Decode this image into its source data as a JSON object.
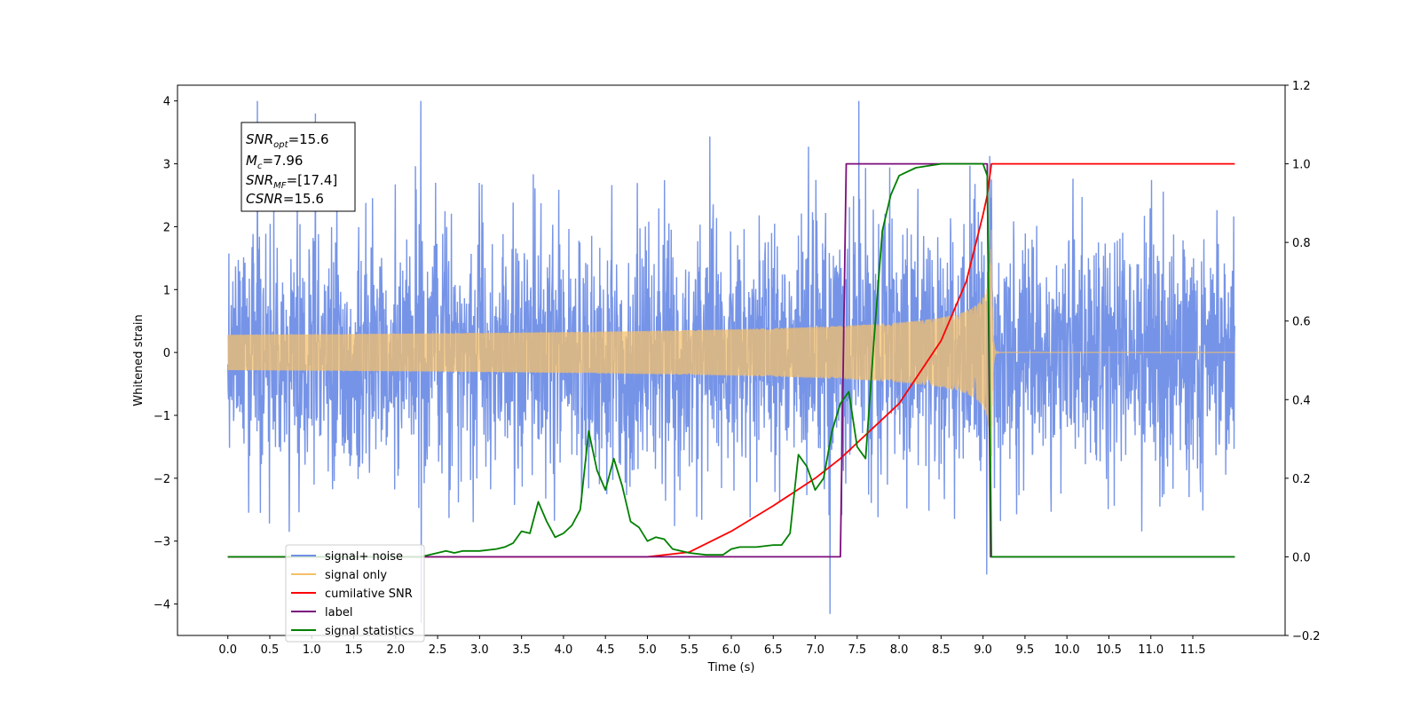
{
  "chart_data": {
    "type": "line",
    "xlabel": "Time (s)",
    "ylabel": "Whitened strain",
    "ylabel_right": "",
    "xlim": [
      -0.6,
      12.6
    ],
    "ylim": [
      -4.5,
      4.25
    ],
    "ylim_right": [
      -0.2,
      1.2
    ],
    "x_ticks": [
      "0.0",
      "0.5",
      "1.0",
      "1.5",
      "2.0",
      "2.5",
      "3.0",
      "3.5",
      "4.0",
      "4.5",
      "5.0",
      "5.5",
      "6.0",
      "6.5",
      "7.0",
      "7.5",
      "8.0",
      "8.5",
      "9.0",
      "9.5",
      "10.0",
      "10.5",
      "11.0",
      "11.5"
    ],
    "y_ticks_left": [
      "−4",
      "−3",
      "−2",
      "−1",
      "0",
      "1",
      "2",
      "3",
      "4"
    ],
    "y_ticks_right": [
      "−0.2",
      "0.0",
      "0.2",
      "0.4",
      "0.6",
      "0.8",
      "1.0",
      "1.2"
    ],
    "annotation": {
      "lines": [
        {
          "sym": "SNR",
          "sub": "opt",
          "rest": "=15.6"
        },
        {
          "sym": "M",
          "sub": "c",
          "rest": "=7.96"
        },
        {
          "sym": "SNR",
          "sub": "MF",
          "rest": "=[17.4]"
        },
        {
          "sym": "CSNR",
          "sub": "",
          "rest": "=15.6"
        }
      ]
    },
    "legend_position": "lower-left",
    "series": [
      {
        "name": "signal+ noise",
        "axis": "left",
        "color": "#6f8ee6",
        "description_of_shape": "white noise, amplitude roughly ±2.5 with spikes to ±4, over 0–12 s",
        "t_range": [
          0,
          12
        ]
      },
      {
        "name": "signal only",
        "axis": "left",
        "color": "#f5c06b",
        "merger_time": 9.1,
        "peak_amplitude": 1.95,
        "chirp_start": 4.5,
        "t_range": [
          0,
          12
        ]
      },
      {
        "name": "cumilative SNR",
        "axis": "right",
        "color": "#ff0000",
        "x": [
          0,
          5.0,
          5.5,
          6.0,
          6.5,
          7.0,
          7.3,
          7.5,
          8.0,
          8.5,
          8.8,
          9.0,
          9.05,
          9.1,
          12.0
        ],
        "y": [
          0,
          0,
          0.012,
          0.065,
          0.13,
          0.2,
          0.25,
          0.29,
          0.39,
          0.55,
          0.7,
          0.87,
          0.92,
          1.0,
          1.0
        ]
      },
      {
        "name": "label",
        "axis": "right",
        "color": "#7b0e7b",
        "x": [
          0,
          7.3,
          7.37,
          9.05,
          9.09,
          12.0
        ],
        "y": [
          0,
          0,
          1.0,
          1.0,
          0,
          0
        ]
      },
      {
        "name": "signal statistics",
        "axis": "right",
        "color": "#008000",
        "x": [
          0,
          2.3,
          2.5,
          2.6,
          2.7,
          2.8,
          3.0,
          3.2,
          3.3,
          3.4,
          3.5,
          3.6,
          3.7,
          3.8,
          3.9,
          4.0,
          4.1,
          4.2,
          4.3,
          4.4,
          4.5,
          4.6,
          4.7,
          4.8,
          4.9,
          5.0,
          5.1,
          5.2,
          5.3,
          5.5,
          5.7,
          5.9,
          6.0,
          6.1,
          6.3,
          6.5,
          6.6,
          6.7,
          6.8,
          6.9,
          7.0,
          7.1,
          7.2,
          7.3,
          7.4,
          7.5,
          7.6,
          7.7,
          7.8,
          7.9,
          8.0,
          8.2,
          8.5,
          9.0,
          9.05,
          9.1,
          9.15,
          12.0
        ],
        "y": [
          0,
          0,
          0.01,
          0.015,
          0.01,
          0.015,
          0.015,
          0.02,
          0.025,
          0.035,
          0.065,
          0.06,
          0.14,
          0.09,
          0.05,
          0.06,
          0.08,
          0.12,
          0.32,
          0.22,
          0.17,
          0.25,
          0.18,
          0.09,
          0.075,
          0.04,
          0.05,
          0.045,
          0.02,
          0.01,
          0.005,
          0.005,
          0.02,
          0.025,
          0.025,
          0.03,
          0.03,
          0.06,
          0.26,
          0.23,
          0.17,
          0.2,
          0.32,
          0.39,
          0.42,
          0.28,
          0.25,
          0.55,
          0.83,
          0.92,
          0.97,
          0.99,
          1.0,
          1.0,
          0.97,
          0.0,
          0.0,
          0.0
        ]
      }
    ]
  }
}
